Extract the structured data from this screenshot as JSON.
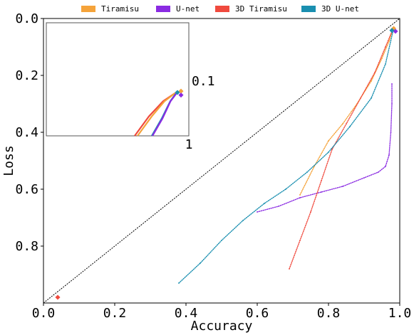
{
  "chart_data": {
    "type": "scatter",
    "xlabel": "Accuracy",
    "ylabel": "Loss",
    "xlim": [
      0.0,
      1.0
    ],
    "ylim": [
      1.0,
      0.0
    ],
    "y_inverted": true,
    "xticks": [
      "0.0",
      "0.2",
      "0.4",
      "0.6",
      "0.8",
      "1.0"
    ],
    "yticks": [
      "0.0",
      "0.2",
      "0.4",
      "0.6",
      "0.8"
    ],
    "grid": false,
    "legend_position": "top",
    "diagonal": {
      "from": [
        0.0,
        1.0
      ],
      "to": [
        1.0,
        0.0
      ],
      "style": "dashed",
      "color": "#000000"
    },
    "series": [
      {
        "name": "Tiramisu",
        "color": "#f5a33a",
        "x": [
          0.72,
          0.76,
          0.8,
          0.84,
          0.88,
          0.92,
          0.95,
          0.97,
          0.98
        ],
        "y": [
          0.62,
          0.52,
          0.43,
          0.37,
          0.3,
          0.22,
          0.14,
          0.08,
          0.04
        ]
      },
      {
        "name": "U-net",
        "color": "#8a2be2",
        "x": [
          0.6,
          0.66,
          0.72,
          0.78,
          0.84,
          0.9,
          0.94,
          0.96,
          0.97,
          0.975,
          0.978,
          0.978
        ],
        "y": [
          0.68,
          0.66,
          0.63,
          0.61,
          0.59,
          0.56,
          0.54,
          0.52,
          0.48,
          0.4,
          0.3,
          0.23
        ]
      },
      {
        "name": "3D Tiramisu",
        "color": "#f04a3e",
        "x": [
          0.69,
          0.72,
          0.75,
          0.78,
          0.81,
          0.85,
          0.89,
          0.93,
          0.96,
          0.98
        ],
        "y": [
          0.88,
          0.78,
          0.68,
          0.57,
          0.46,
          0.37,
          0.28,
          0.19,
          0.1,
          0.04
        ]
      },
      {
        "name": "3D U-net",
        "color": "#1a8fb0",
        "x": [
          0.38,
          0.44,
          0.5,
          0.56,
          0.62,
          0.68,
          0.74,
          0.8,
          0.86,
          0.92,
          0.96,
          0.98
        ],
        "y": [
          0.93,
          0.86,
          0.78,
          0.71,
          0.65,
          0.6,
          0.54,
          0.47,
          0.38,
          0.28,
          0.16,
          0.05
        ]
      }
    ],
    "markers": [
      {
        "series": "Tiramisu",
        "x": 0.983,
        "y": 0.035
      },
      {
        "series": "U-net",
        "x": 0.988,
        "y": 0.045
      },
      {
        "series": "3D Tiramisu",
        "x": 0.04,
        "y": 0.98
      },
      {
        "series": "3D U-net",
        "x": 0.978,
        "y": 0.042
      }
    ],
    "inset": {
      "xlim": [
        0.0,
        1.0
      ],
      "ylim": [
        0.0,
        0.1
      ],
      "xtick_label": "1",
      "ytick_label": "0.1",
      "series": [
        {
          "series": "3D Tiramisu",
          "x": [
            0.62,
            0.72,
            0.82,
            0.91
          ],
          "y": [
            0.0,
            0.045,
            0.08,
            0.1
          ]
        },
        {
          "series": "Tiramisu",
          "x": [
            0.64,
            0.74,
            0.83,
            0.91
          ],
          "y": [
            0.0,
            0.045,
            0.08,
            0.1
          ]
        },
        {
          "series": "3D U-net",
          "x": [
            0.74,
            0.81,
            0.87,
            0.915
          ],
          "y": [
            0.0,
            0.04,
            0.08,
            0.1
          ]
        },
        {
          "series": "U-net",
          "x": [
            0.745,
            0.815,
            0.872,
            0.918
          ],
          "y": [
            0.0,
            0.04,
            0.08,
            0.1
          ]
        }
      ],
      "markers": [
        {
          "series": "Tiramisu",
          "x": 0.945,
          "y": 0.103
        },
        {
          "series": "U-net",
          "x": 0.945,
          "y": 0.094
        },
        {
          "series": "3D U-net",
          "x": 0.92,
          "y": 0.1
        }
      ]
    }
  }
}
